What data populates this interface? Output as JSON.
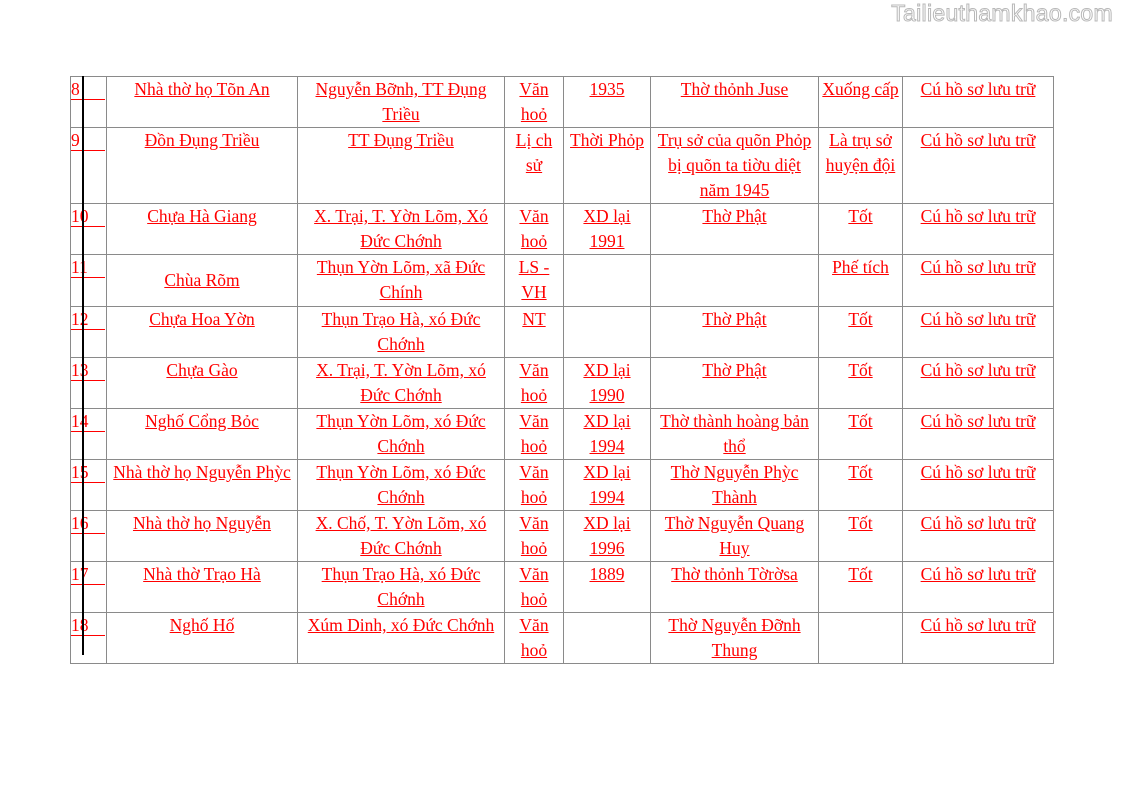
{
  "watermark": "Tailieuthamkhao.com",
  "rows": [
    {
      "no": "8",
      "name": "Nhà thờ họ Tõn An",
      "location": "Nguyễn Bỡnh, TT Đụng Triều",
      "type": "Văn hoỏ",
      "year": "1935",
      "content": "Thờ thỏnh Juse",
      "status": "Xuống cấp",
      "record": "Cú hồ sơ lưu trữ"
    },
    {
      "no": "9",
      "name": "Đồn Đụng Triều",
      "location": "TT Đụng Triều",
      "type": "Lị ch sử",
      "year": "Thời Phỏp",
      "content": "Trụ sở của quõn Phỏp bị  quõn ta tiờu diệt năm 1945",
      "status": "Là trụ sở huyện đội",
      "record": "Cú hồ sơ lưu trữ"
    },
    {
      "no": "10",
      "name": "Chựa Hà Giang",
      "location": "X. Trại, T. Yờn Lõm, Xó Đức Chớnh",
      "type": "Văn hoỏ",
      "year": "XD lại 1991",
      "content": "Thờ Phật",
      "status": "Tốt",
      "record": "Cú hồ sơ lưu trữ"
    },
    {
      "no": "11",
      "name": "Chùa Rõm",
      "location": "Thụn Yờn Lõm, xã Đức Chính",
      "type": "LS - VH",
      "year": "",
      "content": "",
      "status": "Phế tích",
      "record": "Cú hồ sơ lưu trữ"
    },
    {
      "no": "12",
      "name": "Chựa Hoa Yờn",
      "location": "Thụn Trạo Hà, xó Đức Chớnh",
      "type": "NT",
      "year": "",
      "content": "Thờ Phật",
      "status": "Tốt",
      "record": "Cú hồ sơ lưu trữ"
    },
    {
      "no": "13",
      "name": "Chựa Gào",
      "location": "X. Trại, T. Yờn Lõm, xó Đức Chớnh",
      "type": "Văn hoỏ",
      "year": "XD lại 1990",
      "content": "Thờ Phật",
      "status": "Tốt",
      "record": "Cú hồ sơ lưu trữ"
    },
    {
      "no": "14",
      "name": "Nghố Cổng Bỏc",
      "location": "Thụn Yờn Lõm, xó Đức Chớnh",
      "type": "Văn hoỏ",
      "year": "XD lại 1994",
      "content": "Thờ thành hoàng bản thổ",
      "status": "Tốt",
      "record": "Cú hồ sơ lưu trữ"
    },
    {
      "no": "15",
      "name": "Nhà thờ họ Nguyễn Phỳc",
      "location": "Thụn Yờn Lõm, xó Đức Chớnh",
      "type": "Văn hoỏ",
      "year": "XD lại 1994",
      "content": "Thờ Nguyễn Phỳc Thành",
      "status": "Tốt",
      "record": "Cú hồ sơ lưu trữ"
    },
    {
      "no": "16",
      "name": "Nhà thờ họ Nguyễn",
      "location": "X. Chố, T. Yờn Lõm, xó Đức Chớnh",
      "type": "Văn hoỏ",
      "year": "XD lại 1996",
      "content": "Thờ Nguyễn Quang Huy",
      "status": "Tốt",
      "record": "Cú hồ sơ lưu trữ"
    },
    {
      "no": "17",
      "name": "Nhà thờ Trạo Hà",
      "location": "Thụn Trạo Hà, xó Đức Chớnh",
      "type": "Văn hoỏ",
      "year": "1889",
      "content": "Thờ thỏnh Tờrờsa",
      "status": "Tốt",
      "record": "Cú hồ sơ lưu trữ"
    },
    {
      "no": "18",
      "name": "Nghố Hố",
      "location": "Xúm Dinh, xó Đức Chớnh",
      "type": "Văn hoỏ",
      "year": "",
      "content": "Thờ Nguyễn Đỡnh Thung",
      "status": "",
      "record": "Cú hồ sơ lưu trữ"
    }
  ]
}
